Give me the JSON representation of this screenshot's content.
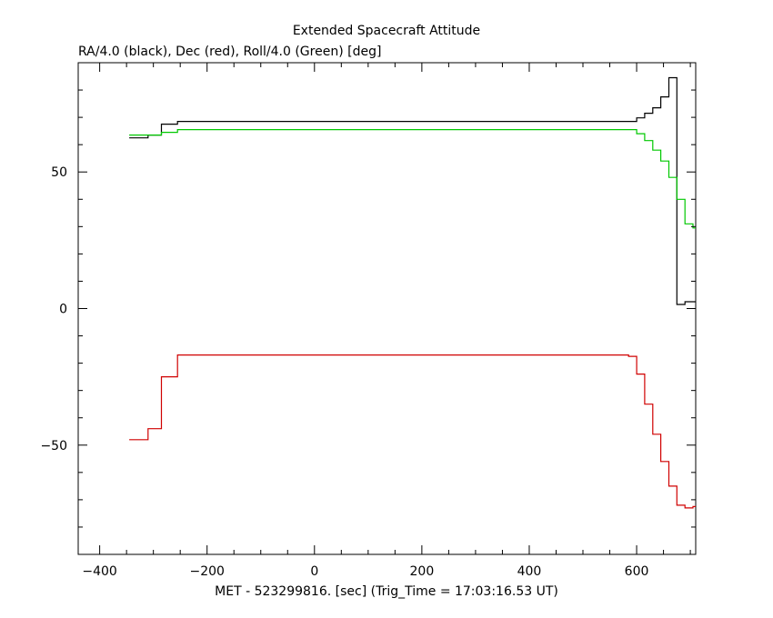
{
  "chart_data": {
    "type": "line",
    "title": "Extended Spacecraft Attitude",
    "subtitle": "RA/4.0 (black), Dec (red), Roll/4.0 (Green) [deg]",
    "xlabel": "MET - 523299816. [sec] (Trig_Time = 17:03:16.53 UT)",
    "ylabel": "",
    "xlim": [
      -440,
      710
    ],
    "ylim": [
      -90,
      90
    ],
    "x_ticks": [
      -400,
      -200,
      0,
      200,
      400,
      600
    ],
    "x_tick_labels": [
      "−400",
      "−200",
      "0",
      "200",
      "400",
      "600"
    ],
    "y_ticks": [
      -50,
      0,
      50
    ],
    "y_tick_labels": [
      "−50",
      "0",
      "50"
    ],
    "x_minor_step": 50,
    "y_minor_step": 10,
    "grid": false,
    "step": true,
    "series": [
      {
        "color": "#000000",
        "x": [
          -345,
          -310,
          -285,
          -255,
          -225,
          -195,
          -165,
          -135,
          -105,
          -75,
          -45,
          -15,
          15,
          45,
          75,
          105,
          135,
          165,
          195,
          225,
          255,
          285,
          315,
          345,
          375,
          405,
          435,
          465,
          495,
          525,
          555,
          585,
          600,
          615,
          630,
          645,
          660,
          675,
          690,
          705
        ],
        "y": [
          62.5,
          63.5,
          67.5,
          68.5,
          68.5,
          68.5,
          68.5,
          68.5,
          68.5,
          68.5,
          68.5,
          68.5,
          68.5,
          68.5,
          68.5,
          68.5,
          68.5,
          68.5,
          68.5,
          68.5,
          68.5,
          68.5,
          68.5,
          68.5,
          68.5,
          68.5,
          68.5,
          68.5,
          68.5,
          68.5,
          68.5,
          68.5,
          69.8,
          71.5,
          73.5,
          77.5,
          84.5,
          1.5,
          2.5,
          2.5
        ]
      },
      {
        "color": "#d00000",
        "x": [
          -345,
          -310,
          -285,
          -255,
          -225,
          -195,
          -165,
          -135,
          -105,
          -75,
          -45,
          -15,
          15,
          45,
          75,
          105,
          135,
          165,
          195,
          225,
          255,
          285,
          315,
          345,
          375,
          405,
          435,
          465,
          495,
          525,
          555,
          585,
          600,
          615,
          630,
          645,
          660,
          675,
          690,
          705
        ],
        "y": [
          -48,
          -44,
          -25,
          -17,
          -17,
          -17,
          -17,
          -17,
          -17,
          -17,
          -17,
          -17,
          -17,
          -17,
          -17,
          -17,
          -17,
          -17,
          -17,
          -17,
          -17,
          -17,
          -17,
          -17,
          -17,
          -17,
          -17,
          -17,
          -17,
          -17,
          -17,
          -17.5,
          -24,
          -35,
          -46,
          -56,
          -65,
          -72,
          -73,
          -72.5
        ]
      },
      {
        "color": "#00c800",
        "x": [
          -345,
          -310,
          -285,
          -255,
          -225,
          -195,
          -165,
          -135,
          -105,
          -75,
          -45,
          -15,
          15,
          45,
          75,
          105,
          135,
          165,
          195,
          225,
          255,
          285,
          315,
          345,
          375,
          405,
          435,
          465,
          495,
          525,
          555,
          585,
          600,
          615,
          630,
          645,
          660,
          675,
          690,
          705
        ],
        "y": [
          63.5,
          63.5,
          64.5,
          65.5,
          65.5,
          65.5,
          65.5,
          65.5,
          65.5,
          65.5,
          65.5,
          65.5,
          65.5,
          65.5,
          65.5,
          65.5,
          65.5,
          65.5,
          65.5,
          65.5,
          65.5,
          65.5,
          65.5,
          65.5,
          65.5,
          65.5,
          65.5,
          65.5,
          65.5,
          65.5,
          65.5,
          65.5,
          64,
          61.5,
          58,
          54,
          48,
          40,
          31,
          29.5
        ]
      }
    ]
  }
}
